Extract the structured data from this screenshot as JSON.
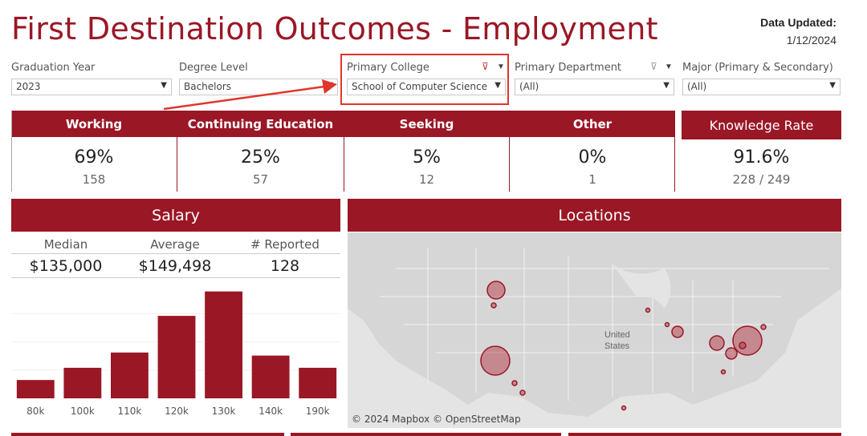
{
  "title": "First Destination Outcomes - Employment",
  "data_updated": {
    "label": "Data Updated:",
    "date": "1/12/2024"
  },
  "filters": [
    {
      "label": "Graduation Year",
      "value": "2023"
    },
    {
      "label": "Degree Level",
      "value": "Bachelors"
    },
    {
      "label": "Primary College",
      "value": "School of Computer Science"
    },
    {
      "label": "Primary Department",
      "value": "(All)"
    },
    {
      "label": "Major (Primary & Secondary)",
      "value": "(All)"
    }
  ],
  "kpis": [
    {
      "label": "Working",
      "pct": "69%",
      "count": "158"
    },
    {
      "label": "Continuing Education",
      "pct": "25%",
      "count": "57"
    },
    {
      "label": "Seeking",
      "pct": "5%",
      "count": "12"
    },
    {
      "label": "Other",
      "pct": "0%",
      "count": "1"
    }
  ],
  "knowledge_rate": {
    "label": "Knowledge Rate",
    "value": "91.6%",
    "detail": "228 / 249"
  },
  "salary": {
    "title": "Salary",
    "median_label": "Median",
    "median": "$135,000",
    "average_label": "Average",
    "average": "$149,498",
    "reported_label": "# Reported",
    "reported": "128"
  },
  "locations": {
    "title": "Locations",
    "country_label_1": "United",
    "country_label_2": "States",
    "credit": "© 2024 Mapbox  © OpenStreetMap"
  },
  "colors": {
    "accent": "#9a1726",
    "highlight": "#e0352b"
  },
  "chart_data": {
    "type": "bar",
    "categories": [
      "80k",
      "100k",
      "110k",
      "120k",
      "130k",
      "140k",
      "190k"
    ],
    "values": [
      6,
      10,
      15,
      27,
      35,
      14,
      10
    ],
    "ylim": [
      0,
      37
    ],
    "xlabel": "",
    "ylabel": ""
  }
}
